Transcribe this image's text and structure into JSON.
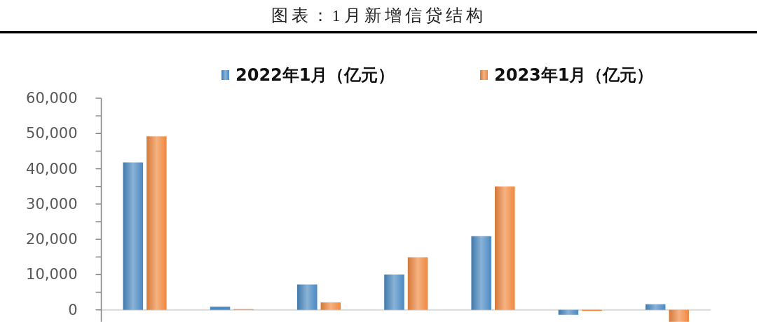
{
  "chart_data": {
    "type": "bar",
    "title": "图表：1月新增信贷结构",
    "categories": [
      null,
      null,
      null,
      null,
      null,
      null,
      null
    ],
    "series": [
      {
        "name": "2022年1月（亿元）",
        "color": "#4a89c2",
        "values": [
          41800,
          900,
          7200,
          10000,
          20900,
          -1400,
          1600
        ]
      },
      {
        "name": "2023年1月（亿元）",
        "color": "#f0883e",
        "values": [
          49200,
          200,
          2100,
          14900,
          35000,
          -300,
          -3400
        ]
      }
    ],
    "ylim": [
      -3400,
      60000
    ],
    "yticks": [
      0,
      {
        "value": 5000,
        "label": null
      },
      {
        "value": 10000,
        "label": "10,000"
      },
      {
        "value": 15000,
        "label": null
      },
      {
        "value": 20000,
        "label": "20,000"
      },
      {
        "value": 25000,
        "label": null
      },
      {
        "value": 30000,
        "label": "30,000"
      },
      {
        "value": 35000,
        "label": null
      },
      {
        "value": 40000,
        "label": "40,000"
      },
      {
        "value": 45000,
        "label": null
      },
      {
        "value": 50000,
        "label": "50,000"
      },
      {
        "value": 55000,
        "label": null
      },
      {
        "value": 60000,
        "label": "60,000"
      }
    ],
    "legend": "top",
    "tick_labels": "y"
  }
}
